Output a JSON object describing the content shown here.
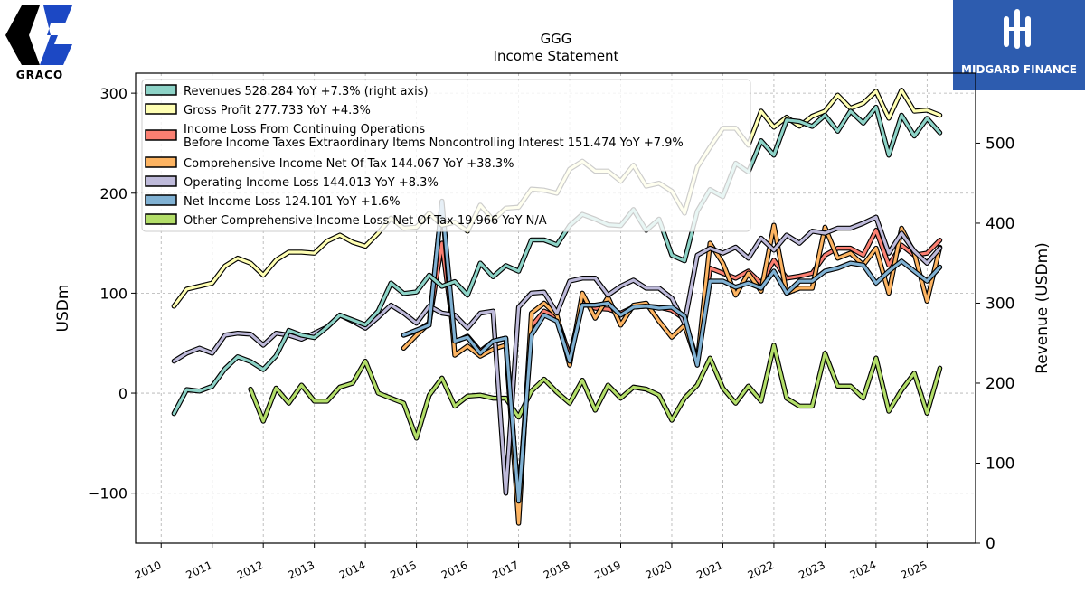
{
  "chart_data": {
    "type": "line",
    "title": "GGG",
    "subtitle": "Income Statement",
    "ylabel": "USDm",
    "y2label": "Revenue (USDm)",
    "ylim": [
      -150,
      320
    ],
    "y2lim": [
      0,
      587.5
    ],
    "xlim": [
      2009.5,
      2025.95
    ],
    "yticks": [
      -100,
      0,
      100,
      200,
      300
    ],
    "ytick_labels": [
      "−100",
      "0",
      "100",
      "200",
      "300"
    ],
    "y2ticks": [
      0,
      100,
      200,
      300,
      400,
      500
    ],
    "xticks": [
      2010,
      2011,
      2012,
      2013,
      2014,
      2015,
      2016,
      2017,
      2018,
      2019,
      2020,
      2021,
      2022,
      2023,
      2024,
      2025
    ],
    "grid": true,
    "legend_position": "top-left",
    "series": [
      {
        "name": "Revenues",
        "legend": "Revenues  528.284 YoY +7.3% (right axis)",
        "color": "#8dd3c7",
        "axis": "right",
        "x": [
          2010.25,
          2010.5,
          2010.75,
          2011.0,
          2011.25,
          2011.5,
          2011.75,
          2012.0,
          2012.25,
          2012.5,
          2012.75,
          2013.0,
          2013.25,
          2013.5,
          2013.75,
          2014.0,
          2014.25,
          2014.5,
          2014.75,
          2015.0,
          2015.25,
          2015.5,
          2015.75,
          2016.0,
          2016.25,
          2016.5,
          2016.75,
          2017.0,
          2017.25,
          2017.5,
          2017.75,
          2018.0,
          2018.25,
          2018.5,
          2018.75,
          2019.0,
          2019.25,
          2019.5,
          2019.75,
          2020.0,
          2020.25,
          2020.5,
          2020.75,
          2021.0,
          2021.25,
          2021.5,
          2021.75,
          2022.0,
          2022.25,
          2022.5,
          2022.75,
          2023.0,
          2023.25,
          2023.5,
          2023.75,
          2024.0,
          2024.25,
          2024.5,
          2024.75,
          2025.0,
          2025.25
        ],
        "values": [
          162,
          192,
          190,
          196,
          218,
          233,
          227,
          217,
          234,
          266,
          260,
          257,
          270,
          285,
          279,
          273,
          290,
          325,
          312,
          314,
          335,
          321,
          327,
          310,
          350,
          333,
          347,
          340,
          379,
          379,
          373,
          397,
          411,
          405,
          398,
          397,
          417,
          391,
          405,
          360,
          353,
          415,
          442,
          433,
          475,
          464,
          503,
          485,
          529,
          527,
          521,
          535,
          515,
          540,
          525,
          545,
          485,
          535,
          509,
          531,
          513
        ]
      },
      {
        "name": "Gross Profit",
        "legend": "Gross Profit  277.733 YoY +4.3%",
        "color": "#ffffb3",
        "axis": "left",
        "x": [
          2010.25,
          2010.5,
          2010.75,
          2011.0,
          2011.25,
          2011.5,
          2011.75,
          2012.0,
          2012.25,
          2012.5,
          2012.75,
          2013.0,
          2013.25,
          2013.5,
          2013.75,
          2014.0,
          2014.25,
          2014.5,
          2014.75,
          2015.0,
          2015.25,
          2015.5,
          2015.75,
          2016.0,
          2016.25,
          2016.5,
          2016.75,
          2017.0,
          2017.25,
          2017.5,
          2017.75,
          2018.0,
          2018.25,
          2018.5,
          2018.75,
          2019.0,
          2019.25,
          2019.5,
          2019.75,
          2020.0,
          2020.25,
          2020.5,
          2020.75,
          2021.0,
          2021.25,
          2021.5,
          2021.75,
          2022.0,
          2022.25,
          2022.5,
          2022.75,
          2023.0,
          2023.25,
          2023.5,
          2023.75,
          2024.0,
          2024.25,
          2024.5,
          2024.75,
          2025.0,
          2025.25
        ],
        "values": [
          87,
          104,
          107,
          110,
          127,
          135,
          130,
          118,
          133,
          141,
          141,
          140,
          152,
          158,
          151,
          147,
          160,
          175,
          165,
          166,
          180,
          168,
          171,
          162,
          188,
          173,
          185,
          186,
          204,
          203,
          200,
          224,
          232,
          222,
          222,
          212,
          228,
          207,
          210,
          202,
          180,
          226,
          246,
          265,
          265,
          248,
          282,
          266,
          276,
          267,
          277,
          282,
          298,
          285,
          290,
          302,
          275,
          303,
          282,
          283,
          278
        ]
      },
      {
        "name": "Income Loss From Continuing Operations Before Income Taxes Extraordinary Items Noncontrolling Interest",
        "legend1": "Income Loss From Continuing Operations",
        "legend2": "Before Income Taxes Extraordinary Items Noncontrolling Interest  151.474 YoY +7.9%",
        "color": "#fb8072",
        "axis": "left",
        "x": [
          2014.75,
          2015.0,
          2015.25,
          2015.5,
          2015.75,
          2016.0,
          2016.25,
          2016.5,
          2016.75,
          2017.0,
          2017.25,
          2017.5,
          2017.75,
          2018.0,
          2018.25,
          2018.5,
          2018.75,
          2019.0,
          2019.25,
          2019.5,
          2019.75,
          2020.0,
          2020.25,
          2020.5,
          2020.75,
          2021.0,
          2021.25,
          2021.5,
          2021.75,
          2022.0,
          2022.25,
          2022.5,
          2022.75,
          2023.0,
          2023.25,
          2023.5,
          2023.75,
          2024.0,
          2024.25,
          2024.5,
          2024.75,
          2025.0,
          2025.25
        ],
        "values": [
          58,
          62,
          70,
          150,
          51,
          57,
          42,
          52,
          55,
          -108,
          67,
          82,
          76,
          37,
          90,
          85,
          84,
          80,
          86,
          87,
          86,
          83,
          74,
          32,
          125,
          120,
          115,
          122,
          110,
          133,
          115,
          117,
          120,
          138,
          145,
          145,
          138,
          163,
          128,
          148,
          138,
          140,
          153
        ]
      },
      {
        "name": "Comprehensive Income Net Of Tax",
        "legend": "Comprehensive Income Net Of Tax  144.067 YoY +38.3%",
        "color": "#fdb462",
        "axis": "left",
        "x": [
          2014.75,
          2015.0,
          2015.25,
          2015.5,
          2015.75,
          2016.0,
          2016.25,
          2016.5,
          2016.75,
          2017.0,
          2017.25,
          2017.5,
          2017.75,
          2018.0,
          2018.25,
          2018.5,
          2018.75,
          2019.0,
          2019.25,
          2019.5,
          2019.75,
          2020.0,
          2020.25,
          2020.5,
          2020.75,
          2021.0,
          2021.25,
          2021.5,
          2021.75,
          2022.0,
          2022.25,
          2022.5,
          2022.75,
          2023.0,
          2023.25,
          2023.5,
          2023.75,
          2024.0,
          2024.25,
          2024.5,
          2024.75,
          2025.0,
          2025.25
        ],
        "values": [
          45,
          58,
          70,
          190,
          38,
          47,
          37,
          44,
          48,
          -130,
          80,
          90,
          78,
          28,
          100,
          75,
          96,
          68,
          88,
          90,
          72,
          56,
          68,
          30,
          150,
          130,
          98,
          120,
          102,
          168,
          100,
          105,
          105,
          166,
          135,
          140,
          128,
          145,
          100,
          165,
          140,
          92,
          146
        ]
      },
      {
        "name": "Operating Income Loss",
        "legend": "Operating Income Loss  144.013 YoY +8.3%",
        "color": "#bebada",
        "axis": "left",
        "x": [
          2010.25,
          2010.5,
          2010.75,
          2011.0,
          2011.25,
          2011.5,
          2011.75,
          2012.0,
          2012.25,
          2012.5,
          2012.75,
          2013.0,
          2013.25,
          2013.5,
          2013.75,
          2014.0,
          2014.25,
          2014.5,
          2014.75,
          2015.0,
          2015.25,
          2015.5,
          2015.75,
          2016.0,
          2016.25,
          2016.5,
          2016.75,
          2017.0,
          2017.25,
          2017.5,
          2017.75,
          2018.0,
          2018.25,
          2018.5,
          2018.75,
          2019.0,
          2019.25,
          2019.5,
          2019.75,
          2020.0,
          2020.25,
          2020.5,
          2020.75,
          2021.0,
          2021.25,
          2021.5,
          2021.75,
          2022.0,
          2022.25,
          2022.5,
          2022.75,
          2023.0,
          2023.25,
          2023.5,
          2023.75,
          2024.0,
          2024.25,
          2024.5,
          2024.75,
          2025.0,
          2025.25
        ],
        "values": [
          32,
          40,
          45,
          40,
          58,
          60,
          59,
          48,
          60,
          58,
          54,
          60,
          66,
          78,
          72,
          65,
          76,
          88,
          80,
          70,
          87,
          80,
          78,
          65,
          80,
          82,
          -100,
          86,
          100,
          101,
          80,
          112,
          115,
          115,
          98,
          107,
          113,
          105,
          105,
          95,
          70,
          138,
          145,
          140,
          146,
          135,
          155,
          143,
          158,
          150,
          162,
          160,
          165,
          165,
          170,
          176,
          140,
          160,
          142,
          130,
          145
        ]
      },
      {
        "name": "Net Income Loss",
        "legend": "Net Income Loss  124.101 YoY +1.6%",
        "color": "#80b1d3",
        "axis": "left",
        "x": [
          2014.75,
          2015.0,
          2015.25,
          2015.5,
          2015.75,
          2016.0,
          2016.25,
          2016.5,
          2016.75,
          2017.0,
          2017.25,
          2017.5,
          2017.75,
          2018.0,
          2018.25,
          2018.5,
          2018.75,
          2019.0,
          2019.25,
          2019.5,
          2019.75,
          2020.0,
          2020.25,
          2020.5,
          2020.75,
          2021.0,
          2021.25,
          2021.5,
          2021.75,
          2022.0,
          2022.25,
          2022.5,
          2022.75,
          2023.0,
          2023.25,
          2023.5,
          2023.75,
          2024.0,
          2024.25,
          2024.5,
          2024.75,
          2025.0,
          2025.25
        ],
        "values": [
          58,
          63,
          68,
          192,
          52,
          56,
          40,
          52,
          55,
          -108,
          58,
          78,
          72,
          32,
          88,
          88,
          90,
          78,
          86,
          87,
          85,
          86,
          77,
          28,
          112,
          112,
          106,
          110,
          105,
          122,
          100,
          112,
          112,
          122,
          125,
          130,
          128,
          110,
          122,
          132,
          122,
          112,
          126
        ]
      },
      {
        "name": "Other Comprehensive Income Loss Net Of Tax",
        "legend": "Other Comprehensive Income Loss Net Of Tax  19.966 YoY N/A",
        "color": "#b3de69",
        "axis": "left",
        "x": [
          2011.75,
          2012.0,
          2012.25,
          2012.5,
          2012.75,
          2013.0,
          2013.25,
          2013.5,
          2013.75,
          2014.0,
          2014.25,
          2014.5,
          2014.75,
          2015.0,
          2015.25,
          2015.5,
          2015.75,
          2016.0,
          2016.25,
          2016.5,
          2016.75,
          2017.0,
          2017.25,
          2017.5,
          2017.75,
          2018.0,
          2018.25,
          2018.5,
          2018.75,
          2019.0,
          2019.25,
          2019.5,
          2019.75,
          2020.0,
          2020.25,
          2020.5,
          2020.75,
          2021.0,
          2021.25,
          2021.5,
          2021.75,
          2022.0,
          2022.25,
          2022.5,
          2022.75,
          2023.0,
          2023.25,
          2023.5,
          2023.75,
          2024.0,
          2024.25,
          2024.5,
          2024.75,
          2025.0,
          2025.25
        ],
        "values": [
          4,
          -28,
          5,
          -10,
          8,
          -8,
          -8,
          6,
          10,
          32,
          0,
          -5,
          -10,
          -45,
          -2,
          15,
          -13,
          -3,
          -2,
          -5,
          -5,
          -24,
          2,
          14,
          1,
          -10,
          13,
          -17,
          8,
          -5,
          6,
          4,
          -2,
          -27,
          -5,
          8,
          35,
          5,
          -10,
          7,
          -8,
          48,
          -5,
          -13,
          -13,
          40,
          7,
          7,
          -5,
          35,
          -18,
          3,
          20,
          -20,
          25
        ]
      }
    ]
  },
  "branding": {
    "left_logo_text": "GRACO",
    "right_logo_text": "MIDGARD FINANCE",
    "right_logo_color": "#2d5caf"
  }
}
